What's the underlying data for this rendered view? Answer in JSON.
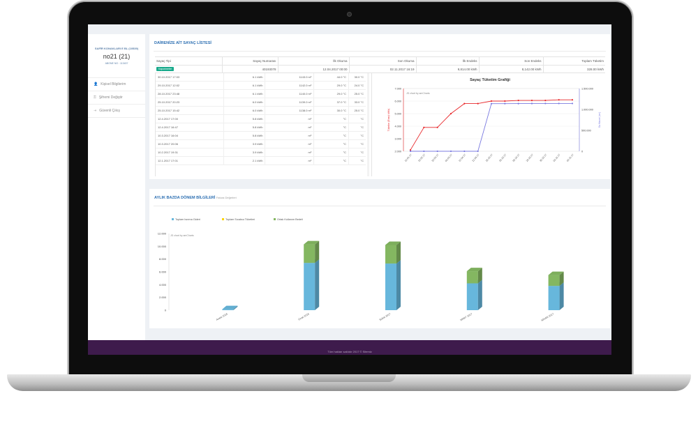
{
  "sidebar": {
    "site": "SAFİR KONAKLARI E BL (10539)",
    "unit": "no21 (21)",
    "subscriber": "ABONE NO : 113437",
    "menu": [
      {
        "label": "Kişisel Bilgilerim",
        "icon": "user-icon"
      },
      {
        "label": "Şifremi Değiştir",
        "icon": "key-icon"
      },
      {
        "label": "Güvenli Çıkış",
        "icon": "logout-icon"
      }
    ]
  },
  "meters": {
    "title": "DAİRENİZE AİT SAYAÇ LİSTESİ",
    "columns": [
      "Sayaç Tipi",
      "Sayaç Numarası",
      "İlk Okuma",
      "Son Okuma",
      "İlk Endeks",
      "Son Endeks",
      "Toplam Tüketim"
    ],
    "row": {
      "type": "Kaporimetre",
      "number": "40193078",
      "first_read": "12.04.2017 00:00",
      "last_read": "02.11.2017 16:19",
      "first_index": "9,814.00",
      "first_unit": "kWh",
      "last_index": "8,142.00",
      "last_unit": "kWh",
      "total": "328.00",
      "total_unit": "kWh"
    },
    "readings": [
      {
        "date": "30.10.2017 17:03",
        "energy": "6.1 kWh",
        "volume": "1143.0 m³",
        "t1": "44.0 °C",
        "t2": "30.0 °C"
      },
      {
        "date": "29.10.2017 12:02",
        "energy": "6.1 kWh",
        "volume": "1142.0 m³",
        "t1": "29.0 °C",
        "t2": "24.0 °C"
      },
      {
        "date": "28.10.2017 23:48",
        "energy": "6.1 kWh",
        "volume": "1140.0 m³",
        "t1": "29.0 °C",
        "t2": "25.0 °C"
      },
      {
        "date": "25.10.2017 20:23",
        "energy": "6.0 kWh",
        "volume": "1139.0 m³",
        "t1": "37.0 °C",
        "t2": "33.0 °C"
      },
      {
        "date": "25.10.2017 15:42",
        "energy": "6.0 kWh",
        "volume": "1138.0 m³",
        "t1": "30.0 °C",
        "t2": "25.0 °C"
      },
      {
        "date": "12.4.2017 17:00",
        "energy": "5.8 kWh",
        "volume": "m³",
        "t1": "°C",
        "t2": "°C"
      },
      {
        "date": "12.4.2017 16:47",
        "energy": "5.8 kWh",
        "volume": "m³",
        "t1": "°C",
        "t2": "°C"
      },
      {
        "date": "10.3.2017 16:04",
        "energy": "5.8 kWh",
        "volume": "m³",
        "t1": "°C",
        "t2": "°C"
      },
      {
        "date": "10.3.2017 20:06",
        "energy": "3.9 kWh",
        "volume": "m³",
        "t1": "°C",
        "t2": "°C"
      },
      {
        "date": "10.2.2017 19:31",
        "energy": "3.9 kWh",
        "volume": "m³",
        "t1": "°C",
        "t2": "°C"
      },
      {
        "date": "12.1.2017 17:01",
        "energy": "2.1 kWh",
        "volume": "m³",
        "t1": "°C",
        "t2": "°C"
      }
    ]
  },
  "period": {
    "title": "AYLIK BAZDA DÖNEM BİLGİLERİ",
    "subtitle": "Fatura Değerleri"
  },
  "footer": {
    "text": "Tüm hakları saklıdır 2017 © Sitemiz"
  },
  "chart_data": [
    {
      "type": "line",
      "title": "Sayaç Tüketim Grafiği",
      "credit": "JS chart by amCharts",
      "x": [
        "12.01.17",
        "10.02.17",
        "10.03.17",
        "03.03.17",
        "12.04.17",
        "12.04.17",
        "25.10.17",
        "25.10.17",
        "28.10.17",
        "29.10.17",
        "30.10.17",
        "02.11.17",
        "02.11.17"
      ],
      "series": [
        {
          "name": "Tüketim (Enerji kWh)",
          "axis": "left",
          "color": "#e8282b",
          "values": [
            2.1,
            3.9,
            3.9,
            5.0,
            5.8,
            5.8,
            6.0,
            6.0,
            6.05,
            6.05,
            6.05,
            6.1,
            6.1
          ]
        },
        {
          "name": "Su Hacmi (m³)",
          "axis": "right",
          "color": "#7b7be0",
          "values": [
            0,
            0,
            0,
            0,
            0,
            0,
            1138000,
            1139000,
            1140000,
            1142000,
            1143000,
            1143000,
            1143000
          ]
        }
      ],
      "ylabel_left": "Tüketim (Enerji kWh)",
      "ylabel_right": "Su Hacmi (m³)",
      "ylim_left": [
        2,
        7
      ],
      "yticks_left": [
        "2.000",
        "3.000",
        "4.000",
        "5.000",
        "6.000",
        "7.000"
      ],
      "ylim_right": [
        0,
        1500000
      ],
      "yticks_right": [
        "0",
        "500.000",
        "1.000.000",
        "1.500.000"
      ]
    },
    {
      "type": "bar",
      "stacked": true,
      "credit": "JS chart by amCharts",
      "categories": [
        "Aralık 2016",
        "Ocak 2016",
        "Şubat 2017",
        "MART 2017",
        "NİSAN 2017"
      ],
      "series": [
        {
          "name": "Toplam Isınma Gideri",
          "color": "#67b7dc",
          "values": [
            150,
            7400,
            7300,
            4200,
            3800
          ]
        },
        {
          "name": "Toplam Sıcaksu Tüketimi",
          "color": "#fdd400",
          "values": [
            0,
            0,
            0,
            0,
            0
          ]
        },
        {
          "name": "Ortak Kullanım Bedeli",
          "color": "#84b761",
          "values": [
            0,
            2900,
            2900,
            1900,
            1700
          ]
        }
      ],
      "ylim": [
        0,
        12000
      ],
      "yticks": [
        "0",
        "2.000",
        "4.000",
        "6.000",
        "8.000",
        "10.000",
        "12.000"
      ]
    }
  ]
}
